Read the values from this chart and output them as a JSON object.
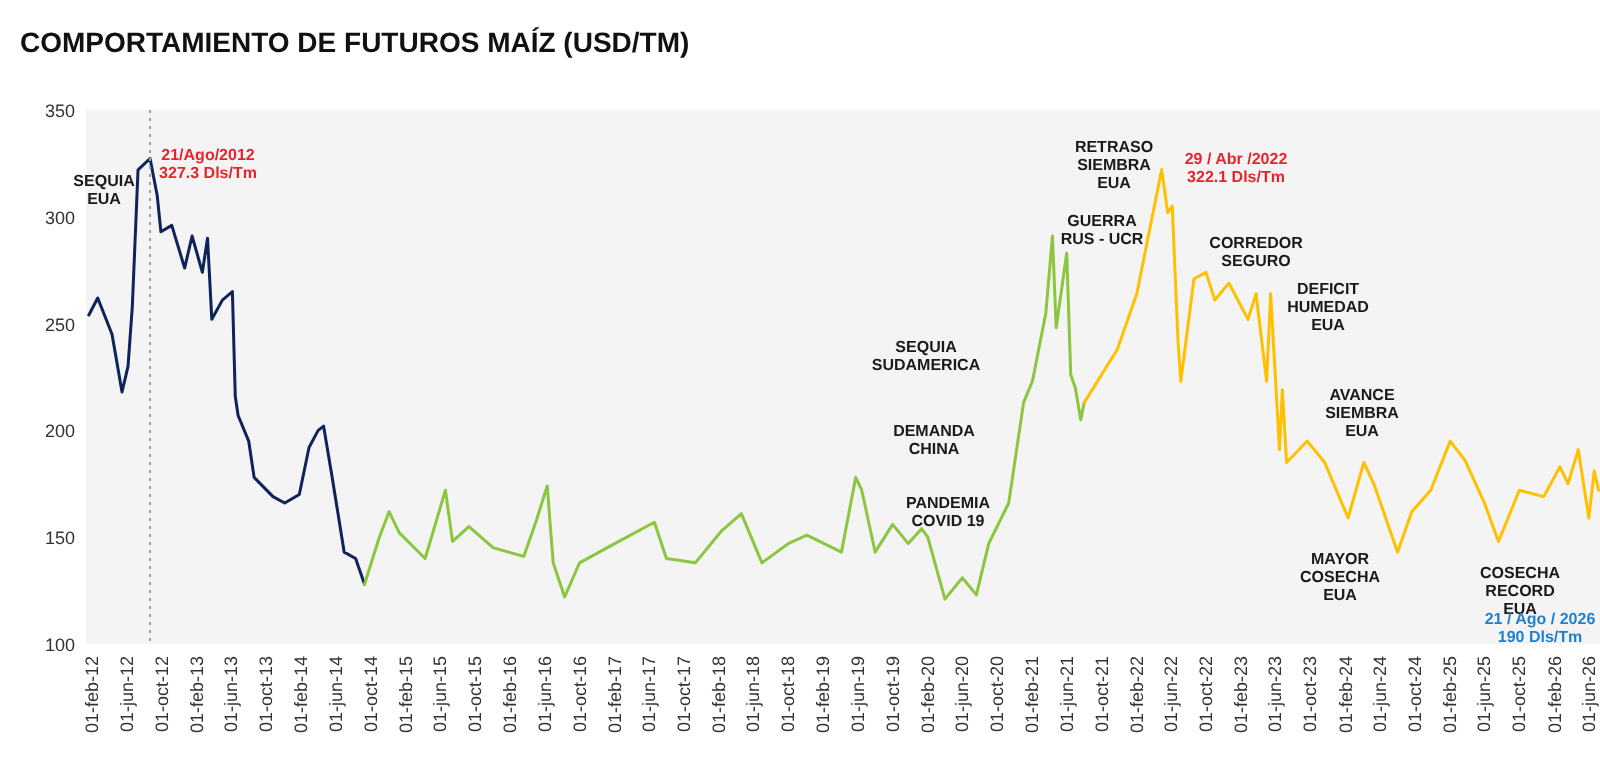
{
  "chart_data": {
    "type": "line",
    "title": "COMPORTAMIENTO  DE FUTUROS MAÍZ (USD/TM)",
    "xlim": [
      "2012-01-10",
      "2026-07-10"
    ],
    "ylim": [
      100,
      350
    ],
    "yticks": [
      100,
      150,
      200,
      250,
      300,
      350
    ],
    "xticks": [
      {
        "value": "2012-02-01",
        "label": "01-feb-12"
      },
      {
        "value": "2012-06-01",
        "label": "01-jun-12"
      },
      {
        "value": "2012-10-01",
        "label": "01-oct-12"
      },
      {
        "value": "2013-02-01",
        "label": "01-feb-13"
      },
      {
        "value": "2013-06-01",
        "label": "01-jun-13"
      },
      {
        "value": "2013-10-01",
        "label": "01-oct-13"
      },
      {
        "value": "2014-02-01",
        "label": "01-feb-14"
      },
      {
        "value": "2014-06-01",
        "label": "01-jun-14"
      },
      {
        "value": "2014-10-01",
        "label": "01-oct-14"
      },
      {
        "value": "2015-02-01",
        "label": "01-feb-15"
      },
      {
        "value": "2015-06-01",
        "label": "01-jun-15"
      },
      {
        "value": "2015-10-01",
        "label": "01-oct-15"
      },
      {
        "value": "2016-02-01",
        "label": "01-feb-16"
      },
      {
        "value": "2016-06-01",
        "label": "01-jun-16"
      },
      {
        "value": "2016-10-01",
        "label": "01-oct-16"
      },
      {
        "value": "2017-02-01",
        "label": "01-feb-17"
      },
      {
        "value": "2017-06-01",
        "label": "01-jun-17"
      },
      {
        "value": "2017-10-01",
        "label": "01-oct-17"
      },
      {
        "value": "2018-02-01",
        "label": "01-feb-18"
      },
      {
        "value": "2018-06-01",
        "label": "01-jun-18"
      },
      {
        "value": "2018-10-01",
        "label": "01-oct-18"
      },
      {
        "value": "2019-02-01",
        "label": "01-feb-19"
      },
      {
        "value": "2019-06-01",
        "label": "01-jun-19"
      },
      {
        "value": "2019-10-01",
        "label": "01-oct-19"
      },
      {
        "value": "2020-02-01",
        "label": "01-feb-20"
      },
      {
        "value": "2020-06-01",
        "label": "01-jun-20"
      },
      {
        "value": "2020-10-01",
        "label": "01-oct-20"
      },
      {
        "value": "2021-02-01",
        "label": "01-feb-21"
      },
      {
        "value": "2021-06-01",
        "label": "01-jun-21"
      },
      {
        "value": "2021-10-01",
        "label": "01-oct-21"
      },
      {
        "value": "2022-02-01",
        "label": "01-feb-22"
      },
      {
        "value": "2022-06-01",
        "label": "01-jun-22"
      },
      {
        "value": "2022-10-01",
        "label": "01-oct-22"
      },
      {
        "value": "2023-02-01",
        "label": "01-feb-23"
      },
      {
        "value": "2023-06-01",
        "label": "01-jun-23"
      },
      {
        "value": "2023-10-01",
        "label": "01-oct-23"
      },
      {
        "value": "2024-02-01",
        "label": "01-feb-24"
      },
      {
        "value": "2024-06-01",
        "label": "01-jun-24"
      },
      {
        "value": "2024-10-01",
        "label": "01-oct-24"
      },
      {
        "value": "2025-02-01",
        "label": "01-feb-25"
      },
      {
        "value": "2025-06-01",
        "label": "01-jun-25"
      },
      {
        "value": "2025-10-01",
        "label": "01-oct-25"
      },
      {
        "value": "2026-02-01",
        "label": "01-feb-26"
      },
      {
        "value": "2026-06-01",
        "label": "01-jun-26"
      }
    ],
    "grid": false,
    "legend": false,
    "marker": "none",
    "line_style": "solid",
    "series": [
      {
        "color": "#0d2359",
        "x": [
          "2012-01-20",
          "2012-02-20",
          "2012-04-10",
          "2012-05-15",
          "2012-06-05",
          "2012-06-20",
          "2012-07-10",
          "2012-08-21",
          "2012-09-15",
          "2012-09-28",
          "2012-11-05",
          "2012-12-20",
          "2013-01-15",
          "2013-02-20",
          "2013-03-10",
          "2013-03-25",
          "2013-05-01",
          "2013-06-05",
          "2013-06-15",
          "2013-06-25",
          "2013-08-01",
          "2013-08-20",
          "2013-10-25",
          "2013-12-05",
          "2014-01-25",
          "2014-02-28",
          "2014-04-01",
          "2014-04-20",
          "2014-05-20",
          "2014-07-01",
          "2014-08-10",
          "2014-09-10"
        ],
        "values": [
          254,
          262,
          245,
          218,
          230,
          258,
          322,
          327.3,
          310,
          293,
          296,
          276,
          291,
          274,
          290,
          252,
          261,
          265,
          216,
          207,
          195,
          178,
          169,
          166,
          170,
          192,
          200,
          202,
          178,
          143,
          140,
          128
        ]
      },
      {
        "color": "#8cc63f",
        "x": [
          "2014-09-10",
          "2014-11-01",
          "2014-12-05",
          "2015-01-10",
          "2015-04-10",
          "2015-06-20",
          "2015-07-15",
          "2015-09-10",
          "2015-12-05",
          "2016-03-20",
          "2016-05-01",
          "2016-06-10",
          "2016-07-01",
          "2016-08-10",
          "2016-10-01",
          "2017-02-01",
          "2017-06-20",
          "2017-08-01",
          "2017-11-10",
          "2018-02-10",
          "2018-04-20",
          "2018-07-01",
          "2018-10-01",
          "2018-12-05",
          "2019-04-05",
          "2019-05-25",
          "2019-06-15",
          "2019-08-01",
          "2019-10-01",
          "2019-11-25",
          "2020-01-10",
          "2020-02-01",
          "2020-04-01",
          "2020-06-01",
          "2020-07-20",
          "2020-09-01",
          "2020-11-10",
          "2021-01-01",
          "2021-02-01",
          "2021-03-20",
          "2021-04-12",
          "2021-04-25",
          "2021-06-01",
          "2021-06-15",
          "2021-07-01",
          "2021-07-20",
          "2021-08-01"
        ],
        "values": [
          128,
          150,
          162,
          152,
          140,
          172,
          148,
          155,
          145,
          141,
          157,
          174,
          138,
          122,
          138,
          147,
          157,
          140,
          138,
          153,
          161,
          138,
          147,
          151,
          143,
          178,
          172,
          143,
          156,
          147,
          154,
          150,
          121,
          131,
          123,
          147,
          166,
          213,
          223,
          255,
          291,
          248,
          283,
          226,
          220,
          205,
          213
        ]
      },
      {
        "color": "#ffc000",
        "x": [
          "2021-08-01",
          "2021-11-25",
          "2022-02-01",
          "2022-04-29",
          "2022-05-20",
          "2022-06-05",
          "2022-06-25",
          "2022-07-05",
          "2022-08-20",
          "2022-10-01",
          "2022-11-01",
          "2022-12-20",
          "2023-02-25",
          "2023-03-25",
          "2023-05-01",
          "2023-05-15",
          "2023-06-15",
          "2023-06-25",
          "2023-07-10",
          "2023-09-20",
          "2023-11-20",
          "2024-02-10",
          "2024-04-05",
          "2024-05-10",
          "2024-08-01",
          "2024-09-20",
          "2024-11-25",
          "2025-02-01",
          "2025-03-25",
          "2025-06-01",
          "2025-07-20",
          "2025-10-01",
          "2025-12-25",
          "2026-02-20",
          "2026-03-20",
          "2026-04-25",
          "2026-06-01",
          "2026-06-20",
          "2026-07-05"
        ],
        "values": [
          213,
          238,
          264,
          322.1,
          302,
          305,
          242,
          223,
          271,
          274,
          261,
          269,
          252,
          264,
          223,
          264,
          191,
          219,
          185,
          195,
          185,
          159,
          185,
          175,
          143,
          162,
          172,
          195,
          186,
          166,
          148,
          172,
          169,
          183,
          175,
          191,
          159,
          181,
          172
        ]
      }
    ],
    "ref_lines": [
      {
        "axis": "x",
        "value": "2012-08-21",
        "color": "#9e9e9e",
        "line_style": "dotted"
      }
    ],
    "annotations": [
      "SEQUIA\nEUA",
      "21/Ago/2012\n327.3 Dls/Tm",
      "PANDEMIA\nCOVID 19",
      "DEMANDA\nCHINA",
      "SEQUIA\nSUDAMERICA",
      "GUERRA\nRUS - UCR",
      "RETRASO\nSIEMBRA\nEUA",
      "29 / Abr /2022\n322.1 Dls/Tm",
      "CORREDOR\nSEGURO",
      "DEFICIT\nHUMEDAD\nEUA",
      "AVANCE\nSIEMBRA\nEUA",
      "MAYOR\nCOSECHA\nEUA",
      "COSECHA\nRECORD\nEUA",
      "21 / Ago / 2026\n190 Dls/Tm"
    ]
  }
}
